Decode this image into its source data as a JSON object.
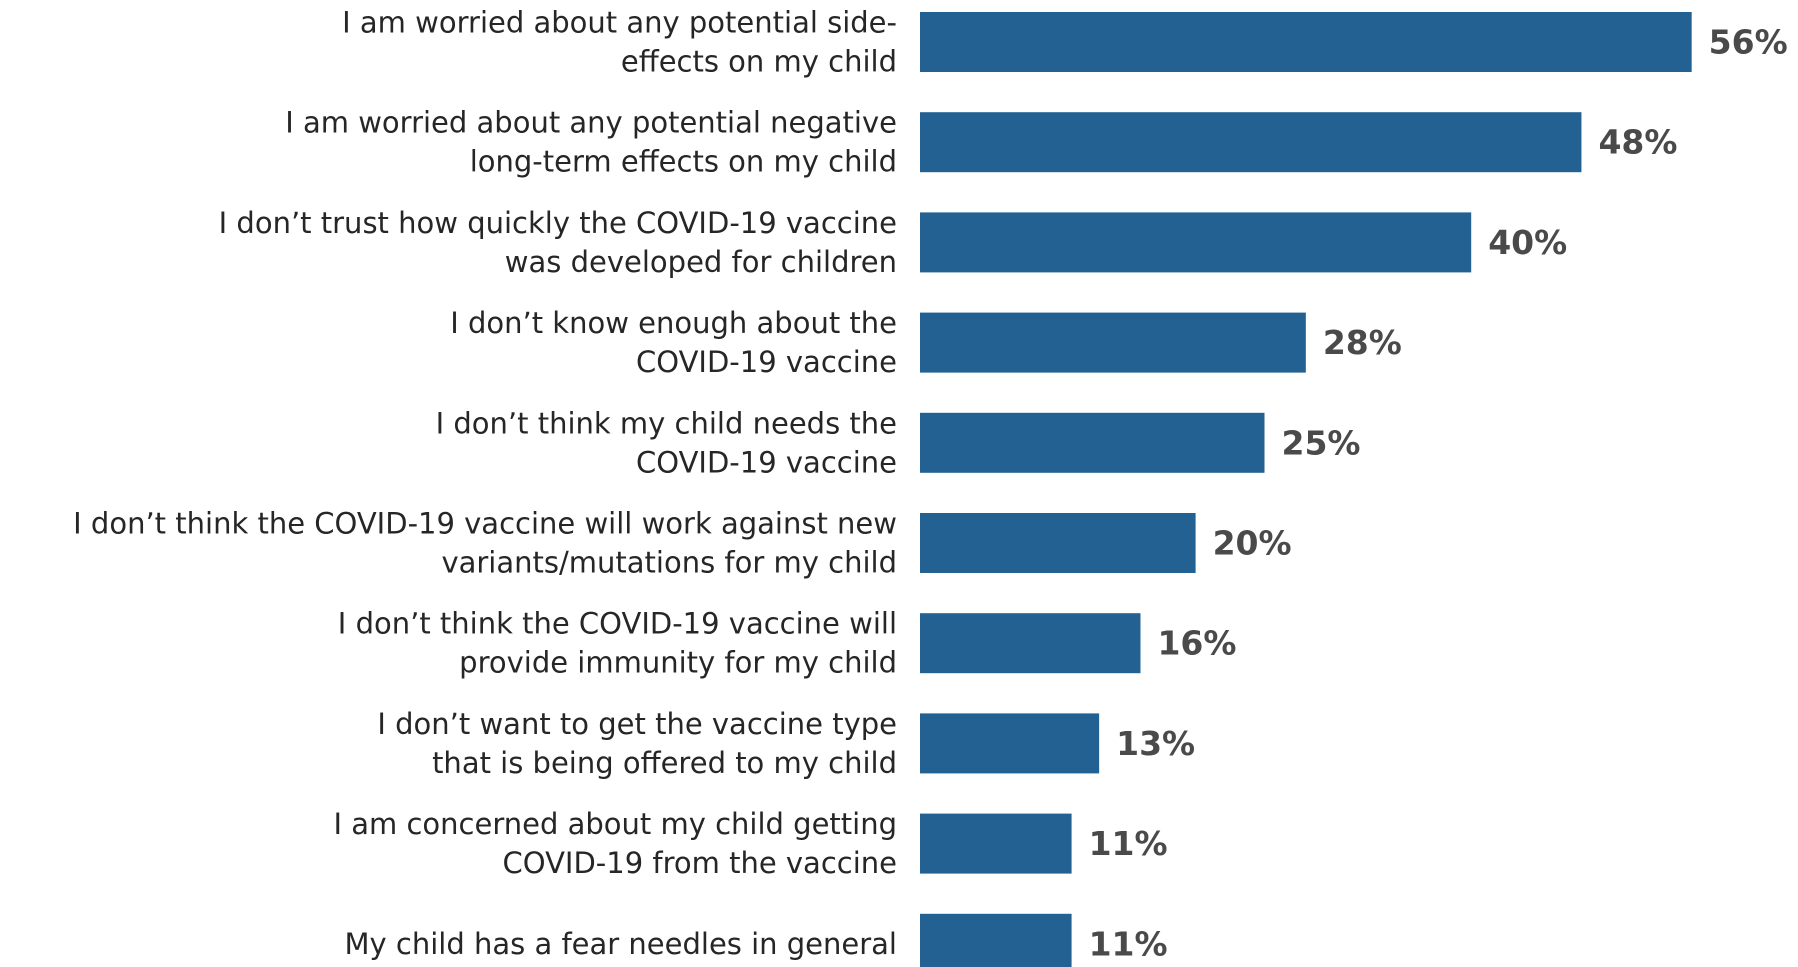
{
  "chart_data": {
    "type": "bar",
    "orientation": "horizontal",
    "categories": [
      [
        "I am worried about any potential side-",
        "effects on my child"
      ],
      [
        "I am worried about any potential negative",
        "long-term effects on my child"
      ],
      [
        "I don’t trust how quickly the COVID-19 vaccine",
        "was developed for children"
      ],
      [
        "I don’t know enough about the",
        "COVID-19 vaccine"
      ],
      [
        "I don’t think my child needs the",
        "COVID-19 vaccine"
      ],
      [
        "I don’t think the COVID-19 vaccine will work against new",
        "variants/mutations for my child"
      ],
      [
        "I don’t think the COVID-19 vaccine will",
        "provide immunity for my child"
      ],
      [
        "I don’t want to get the vaccine type",
        "that is being offered to my child"
      ],
      [
        "I am concerned about my child getting",
        "COVID-19 from the vaccine"
      ],
      [
        "My child has a fear needles in general"
      ]
    ],
    "values": [
      56,
      48,
      40,
      28,
      25,
      20,
      16,
      13,
      11,
      11
    ],
    "value_labels": [
      "56%",
      "48%",
      "40%",
      "28%",
      "25%",
      "20%",
      "16%",
      "13%",
      "11%",
      "11%"
    ],
    "title": "",
    "xlabel": "",
    "ylabel": "",
    "xlim": [
      0,
      60
    ],
    "grid": false,
    "bar_color": "#236192"
  }
}
